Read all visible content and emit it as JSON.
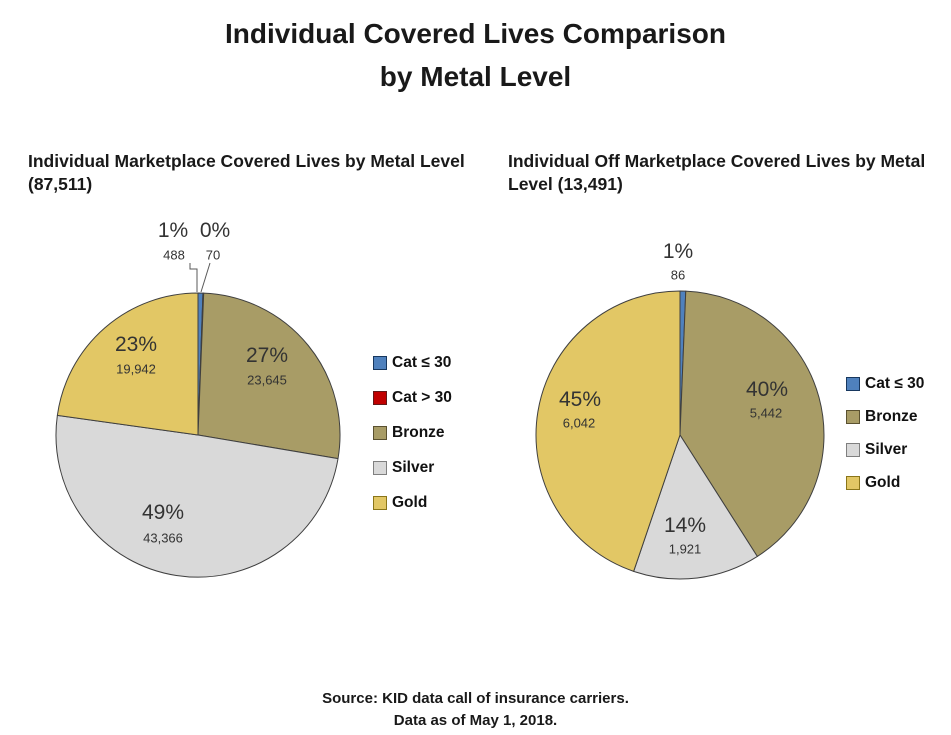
{
  "title": "Individual Covered Lives Comparison\nby Metal Level",
  "footer": "Source: KID data call of insurance carriers.\nData as of May 1, 2018.",
  "colors": {
    "slice_border": "#3F3F3F",
    "leader_line": "#595959",
    "label_text": "#333333"
  },
  "chart_data": [
    {
      "type": "pie",
      "title": "Individual Marketplace Covered Lives by Metal Level (87,511)",
      "total": 87511,
      "legend_position": "right",
      "start_angle_deg": 0,
      "direction": "clockwise",
      "slices": [
        {
          "label": "Cat ≤ 30",
          "value": 488,
          "pct": "1%",
          "count": "488",
          "color": "#4F81BD",
          "border": "#17375E"
        },
        {
          "label": "Cat > 30",
          "value": 70,
          "pct": "0%",
          "count": "70",
          "color": "#C00000",
          "border": "#631818"
        },
        {
          "label": "Bronze",
          "value": 23645,
          "pct": "27%",
          "count": "23,645",
          "color": "#A89C66",
          "border": "#5A5130"
        },
        {
          "label": "Silver",
          "value": 43366,
          "pct": "49%",
          "count": "43,366",
          "color": "#D9D9D9",
          "border": "#7F7F7F"
        },
        {
          "label": "Gold",
          "value": 19942,
          "pct": "23%",
          "count": "19,942",
          "color": "#E2C765",
          "border": "#8A7519"
        }
      ]
    },
    {
      "type": "pie",
      "title": "Individual Off Marketplace Covered Lives by Metal Level (13,491)",
      "total": 13491,
      "legend_position": "right",
      "start_angle_deg": 0,
      "direction": "clockwise",
      "slices": [
        {
          "label": "Cat ≤ 30",
          "value": 86,
          "pct": "1%",
          "count": "86",
          "color": "#4F81BD",
          "border": "#17375E"
        },
        {
          "label": "Bronze",
          "value": 5442,
          "pct": "40%",
          "count": "5,442",
          "color": "#A89C66",
          "border": "#5A5130"
        },
        {
          "label": "Silver",
          "value": 1921,
          "pct": "14%",
          "count": "1,921",
          "color": "#D9D9D9",
          "border": "#7F7F7F"
        },
        {
          "label": "Gold",
          "value": 6042,
          "pct": "45%",
          "count": "6,042",
          "color": "#E2C765",
          "border": "#8A7519"
        }
      ]
    }
  ]
}
